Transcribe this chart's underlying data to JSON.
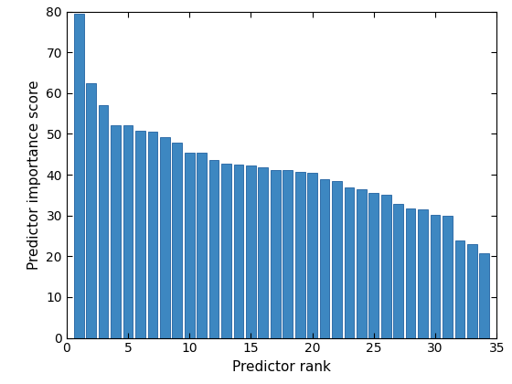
{
  "values": [
    79.5,
    62.5,
    57.0,
    52.2,
    52.2,
    50.8,
    50.5,
    49.2,
    47.8,
    45.5,
    45.5,
    43.5,
    42.8,
    42.5,
    42.2,
    41.8,
    41.2,
    41.1,
    40.8,
    40.5,
    38.8,
    38.5,
    36.8,
    36.5,
    35.5,
    35.2,
    32.8,
    31.8,
    31.5,
    30.2,
    30.0,
    24.0,
    23.0,
    20.8
  ],
  "bar_color": "#3d87c1",
  "bar_edge_color": "#2060a0",
  "xlabel": "Predictor rank",
  "ylabel": "Predictor importance score",
  "xlim": [
    0.5,
    34.5
  ],
  "ylim": [
    0,
    80
  ],
  "yticks": [
    0,
    10,
    20,
    30,
    40,
    50,
    60,
    70,
    80
  ],
  "xticks": [
    0,
    5,
    10,
    15,
    20,
    25,
    30,
    35
  ],
  "figsize": [
    5.6,
    4.2
  ],
  "dpi": 100,
  "tick_fontsize": 10,
  "label_fontsize": 11
}
